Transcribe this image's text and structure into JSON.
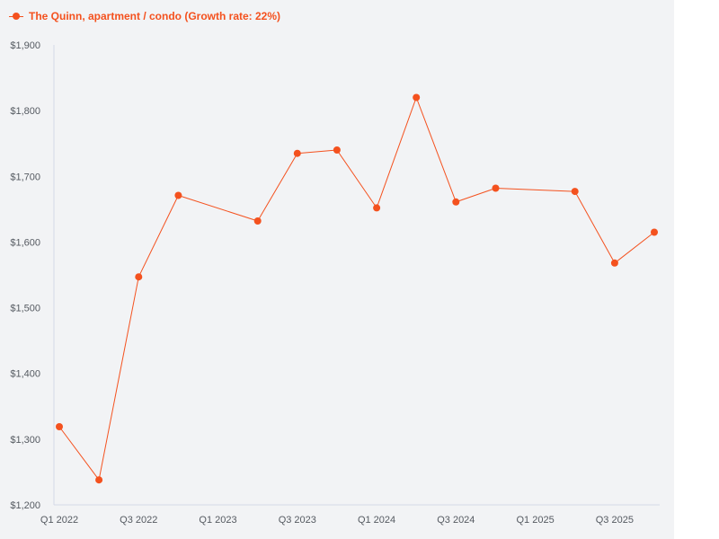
{
  "chart_data": {
    "type": "line",
    "legend": {
      "label": "The Quinn, apartment / condo (Growth rate: 22%)",
      "placement": "top-left"
    },
    "series": [
      {
        "name": "The Quinn, apartment / condo (Growth rate: 22%)",
        "color": "#f4511e",
        "x": [
          "2022-Q1",
          "2022-Q2",
          "2022-Q3",
          "2022-Q4",
          "2023-Q2",
          "2023-Q3",
          "2023-Q4",
          "2024-Q1",
          "2024-Q2",
          "2024-Q3",
          "2024-Q4",
          "2025-Q2",
          "2025-Q3",
          "2025-Q4"
        ],
        "x_index": [
          0,
          1,
          2,
          3,
          5,
          6,
          7,
          8,
          9,
          10,
          11,
          13,
          14,
          15
        ],
        "values": [
          1319,
          1238,
          1547,
          1671,
          1632,
          1735,
          1740,
          1652,
          1820,
          1661,
          1682,
          1677,
          1568,
          1615
        ]
      }
    ],
    "x_ticks": [
      {
        "index": 0,
        "label": "Q1 2022"
      },
      {
        "index": 2,
        "label": "Q3 2022"
      },
      {
        "index": 4,
        "label": "Q1 2023"
      },
      {
        "index": 6,
        "label": "Q3 2023"
      },
      {
        "index": 8,
        "label": "Q1 2024"
      },
      {
        "index": 10,
        "label": "Q3 2024"
      },
      {
        "index": 12,
        "label": "Q1 2025"
      },
      {
        "index": 14,
        "label": "Q3 2025"
      }
    ],
    "x_range": [
      0,
      15
    ],
    "y_ticks": [
      {
        "value": 1200,
        "label": "$1,200"
      },
      {
        "value": 1300,
        "label": "$1,300"
      },
      {
        "value": 1400,
        "label": "$1,400"
      },
      {
        "value": 1500,
        "label": "$1,500"
      },
      {
        "value": 1600,
        "label": "$1,600"
      },
      {
        "value": 1700,
        "label": "$1,700"
      },
      {
        "value": 1800,
        "label": "$1,800"
      },
      {
        "value": 1900,
        "label": "$1,900"
      }
    ],
    "ylim": [
      1200,
      1900
    ],
    "grid": false,
    "colors": {
      "series": "#f4511e",
      "axis": "#d4d8e8",
      "tick_text": "#555a61",
      "background": "#f2f3f5"
    }
  }
}
